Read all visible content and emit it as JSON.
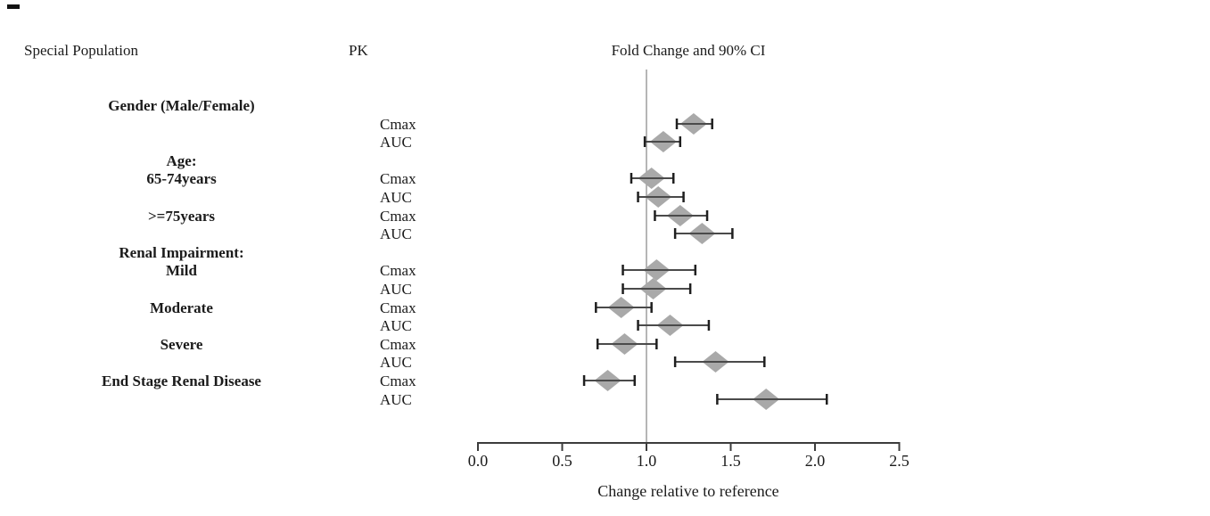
{
  "figure": {
    "kind": "forest-plot",
    "background": "#ffffff"
  },
  "chart_data": {
    "type": "forest",
    "title": "Fold Change and 90% CI",
    "column_headers": {
      "population": "Special Population",
      "pk": "PK",
      "estimate": "Fold Change and 90% CI"
    },
    "xlabel": "Change relative to reference",
    "xlim": [
      0.0,
      2.5
    ],
    "xticks": [
      "0.0",
      "0.5",
      "1.0",
      "1.5",
      "2.0",
      "2.5"
    ],
    "reference_line": 1.0,
    "ci_level": "90%",
    "grid": false,
    "legend": "none",
    "rows": [
      {
        "population": "Gender (Male/Female)"
      },
      {
        "pk": "Cmax",
        "fold_change": 1.28,
        "ci_low": 1.18,
        "ci_high": 1.39
      },
      {
        "pk": "AUC",
        "fold_change": 1.1,
        "ci_low": 0.99,
        "ci_high": 1.2
      },
      {
        "population": "Age:"
      },
      {
        "population": "65-74years",
        "pk": "Cmax",
        "fold_change": 1.03,
        "ci_low": 0.91,
        "ci_high": 1.16
      },
      {
        "pk": "AUC",
        "fold_change": 1.07,
        "ci_low": 0.95,
        "ci_high": 1.22
      },
      {
        "population": ">=75years",
        "pk": "Cmax",
        "fold_change": 1.2,
        "ci_low": 1.05,
        "ci_high": 1.36
      },
      {
        "pk": "AUC",
        "fold_change": 1.33,
        "ci_low": 1.17,
        "ci_high": 1.51
      },
      {
        "population": "Renal Impairment:"
      },
      {
        "population": "Mild",
        "pk": "Cmax",
        "fold_change": 1.06,
        "ci_low": 0.86,
        "ci_high": 1.29
      },
      {
        "pk": "AUC",
        "fold_change": 1.04,
        "ci_low": 0.86,
        "ci_high": 1.26
      },
      {
        "population": "Moderate",
        "pk": "Cmax",
        "fold_change": 0.85,
        "ci_low": 0.7,
        "ci_high": 1.03
      },
      {
        "pk": "AUC",
        "fold_change": 1.14,
        "ci_low": 0.95,
        "ci_high": 1.37
      },
      {
        "population": "Severe",
        "pk": "Cmax",
        "fold_change": 0.87,
        "ci_low": 0.71,
        "ci_high": 1.06
      },
      {
        "pk": "AUC",
        "fold_change": 1.41,
        "ci_low": 1.17,
        "ci_high": 1.7
      },
      {
        "population": "End Stage Renal Disease",
        "pk": "Cmax",
        "fold_change": 0.77,
        "ci_low": 0.63,
        "ci_high": 0.93
      },
      {
        "pk": "AUC",
        "fold_change": 1.71,
        "ci_low": 1.42,
        "ci_high": 2.07
      }
    ],
    "colors": {
      "diamond": "#a9a9a9",
      "whisker": "#4a4a4a",
      "cap": "#1f1f1f",
      "reference_line": "#9e9e9e",
      "axis": "#3c3c3c",
      "text": "#1b1b1b"
    }
  }
}
